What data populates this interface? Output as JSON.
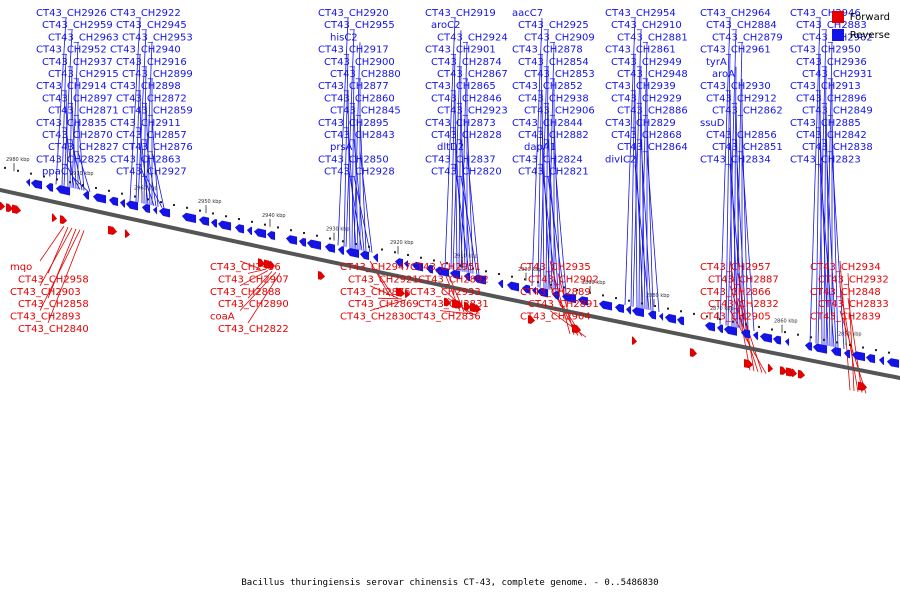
{
  "colors": {
    "forward": "#e40000",
    "reverse": "#1414e6",
    "backbone": "#555555"
  },
  "legend": [
    {
      "label": "Forward",
      "color": "#e40000"
    },
    {
      "label": "Reverse",
      "color": "#1414e6"
    }
  ],
  "caption": "Bacillus thuringiensis serovar chinensis CT-43, complete genome. - 0..5486830",
  "ticks": [
    "2980 kbp",
    "2970 kbp",
    "2960 kbp",
    "2950 kbp",
    "2940 kbp",
    "2930 kbp",
    "2920 kbp",
    "2910 kbp",
    "2900 kbp",
    "2890 kbp",
    "2880 kbp",
    "2870 kbp",
    "2860 kbp",
    "2850 kbp"
  ],
  "reverse_labels": [
    "CT43_CH2926",
    "CT43_CH2922",
    "CT43_CH2920",
    "CT43_CH2919",
    "aacC7",
    "CT43_CH2954",
    "CT43_CH2964",
    "CT43_CH2946",
    "CT43_CH2959",
    "CT43_CH2945",
    "CT43_CH2955",
    "aroC2",
    "CT43_CH2925",
    "CT43_CH2910",
    "CT43_CH2884",
    "CT43_CH2883",
    "CT43_CH2963",
    "CT43_CH2953",
    "hisC2",
    "CT43_CH2924",
    "CT43_CH2909",
    "CT43_CH2881",
    "CT43_CH2879",
    "CT43_CH2962",
    "CT43_CH2952",
    "CT43_CH2940",
    "CT43_CH2917",
    "CT43_CH2901",
    "CT43_CH2878",
    "CT43_CH2861",
    "CT43_CH2961",
    "CT43_CH2950",
    "CT43_CH2937",
    "CT43_CH2916",
    "CT43_CH2900",
    "CT43_CH2874",
    "CT43_CH2854",
    "CT43_CH2949",
    "tyrA",
    "CT43_CH2936",
    "CT43_CH2915",
    "CT43_CH2899",
    "CT43_CH2880",
    "CT43_CH2867",
    "CT43_CH2853",
    "CT43_CH2948",
    "aroA",
    "CT43_CH2931",
    "CT43_CH2914",
    "CT43_CH2898",
    "CT43_CH2877",
    "CT43_CH2865",
    "CT43_CH2852",
    "CT43_CH2939",
    "CT43_CH2930",
    "CT43_CH2913",
    "CT43_CH2897",
    "CT43_CH2872",
    "CT43_CH2860",
    "CT43_CH2846",
    "CT43_CH2938",
    "CT43_CH2929",
    "CT43_CH2912",
    "CT43_CH2896",
    "CT43_CH2871",
    "CT43_CH2859",
    "CT43_CH2845",
    "CT43_CH2923",
    "CT43_CH2906",
    "CT43_CH2886",
    "CT43_CH2862",
    "CT43_CH2849",
    "CT43_CH2835",
    "CT43_CH2911",
    "CT43_CH2895",
    "CT43_CH2873",
    "CT43_CH2844",
    "CT43_CH2829",
    "ssuD",
    "CT43_CH2885",
    "CT43_CH2870",
    "CT43_CH2857",
    "CT43_CH2843",
    "CT43_CH2828",
    "CT43_CH2882",
    "CT43_CH2868",
    "CT43_CH2856",
    "CT43_CH2842",
    "CT43_CH2827",
    "CT43_CH2876",
    "prsA",
    "dltD2",
    "dapA1",
    "CT43_CH2864",
    "CT43_CH2851",
    "CT43_CH2838",
    "CT43_CH2825",
    "CT43_CH2863",
    "CT43_CH2850",
    "CT43_CH2837",
    "CT43_CH2824",
    "divIC2",
    "CT43_CH2834",
    "CT43_CH2823",
    "ppaC",
    "CT43_CH2927",
    "CT43_CH2928",
    "CT43_CH2820",
    "CT43_CH2821"
  ],
  "forward_labels": [
    "mqo",
    "CT43_CH2956",
    "CT43_CH2947",
    "CT43_CH2951",
    "CT43_CH2935",
    "CT43_CH2957",
    "CT43_CH2934",
    "CT43_CH2958",
    "CT43_CH2907",
    "CT43_CH2921",
    "CT43_CH2892",
    "CT43_CH2902",
    "CT43_CH2887",
    "CT43_CH2932",
    "CT43_CH2903",
    "CT43_CH2888",
    "CT43_CH2875",
    "CT43_CH2933",
    "CT43_CH2889",
    "CT43_CH2866",
    "CT43_CH2848",
    "CT43_CH2858",
    "CT43_CH2890",
    "CT43_CH2869",
    "CT43_CH2831",
    "CT43_CH2891",
    "CT43_CH2832",
    "CT43_CH2833",
    "CT43_CH2893",
    "coaA",
    "CT43_CH2830",
    "CT43_CH2836",
    "CT43_CH2904",
    "CT43_CH2905",
    "CT43_CH2839",
    "CT43_CH2840",
    "CT43_CH2822"
  ]
}
